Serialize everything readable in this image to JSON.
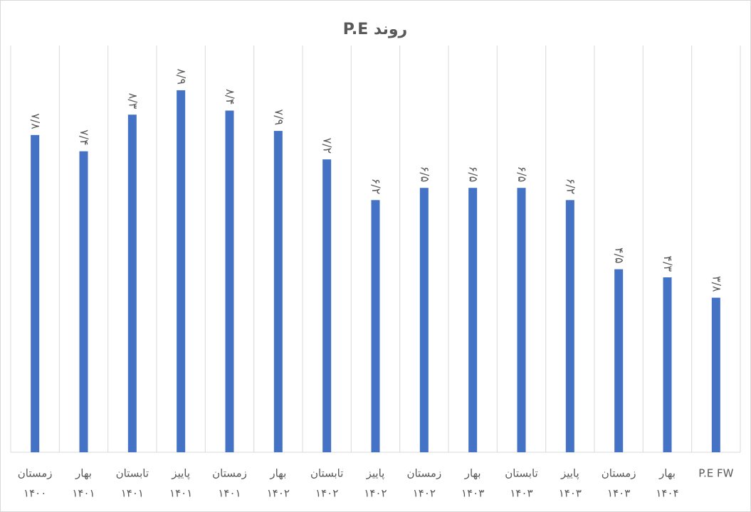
{
  "chart_data": {
    "type": "bar",
    "title": "روند P.E",
    "categories": [
      [
        "زمستان",
        "۱۴۰۰"
      ],
      [
        "بهار",
        "۱۴۰۱"
      ],
      [
        "تابستان",
        "۱۴۰۱"
      ],
      [
        "پاییز",
        "۱۴۰۱"
      ],
      [
        "زمستان",
        "۱۴۰۱"
      ],
      [
        "بهار",
        "۱۴۰۲"
      ],
      [
        "تابستان",
        "۱۴۰۲"
      ],
      [
        "پاییز",
        "۱۴۰۲"
      ],
      [
        "زمستان",
        "۱۴۰۲"
      ],
      [
        "بهار",
        "۱۴۰۳"
      ],
      [
        "تابستان",
        "۱۴۰۳"
      ],
      [
        "پاییز",
        "۱۴۰۳"
      ],
      [
        "زمستان",
        "۱۴۰۳"
      ],
      [
        "بهار",
        "۱۴۰۴"
      ],
      [
        "P.E FW"
      ]
    ],
    "values": [
      7.8,
      7.4,
      8.3,
      8.9,
      8.4,
      7.9,
      7.2,
      6.2,
      6.5,
      6.5,
      6.5,
      6.2,
      4.5,
      4.3,
      3.8
    ],
    "value_labels": [
      "۷/۸",
      "۷/۴",
      "۸/۳",
      "۸/۹",
      "۸/۴",
      "۷/۹",
      "۷/۲",
      "۶/۲",
      "۶/۵",
      "۶/۵",
      "۶/۵",
      "۶/۲",
      "۴/۵",
      "۴/۳",
      "۳/۸"
    ],
    "color": "#4472c4",
    "ylim": [
      0,
      10
    ]
  }
}
